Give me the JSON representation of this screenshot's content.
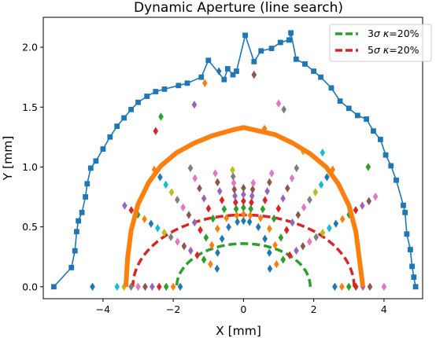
{
  "chart_data": {
    "type": "scatter",
    "title": "Dynamic Aperture (line search)",
    "xlabel": "X [mm]",
    "ylabel": "Y [mm]",
    "xlim": [
      -5.7,
      5.1
    ],
    "ylim": [
      -0.1,
      2.25
    ],
    "xticks": [
      -4,
      -2,
      0,
      2,
      4
    ],
    "yticks": [
      0.0,
      0.5,
      1.0,
      1.5,
      2.0
    ],
    "xtick_labels": [
      "−4",
      "−2",
      "0",
      "2",
      "4"
    ],
    "ytick_labels": [
      "0.0",
      "0.5",
      "1.0",
      "1.5",
      "2.0"
    ],
    "grid": false,
    "legend_position": "top-right",
    "legend": [
      {
        "label_prefix": "3",
        "sigma": "σ",
        "kappa": "κ",
        "label_suffix": "=20%",
        "color": "#2ca02c"
      },
      {
        "label_prefix": "5",
        "sigma": "σ",
        "kappa": "κ",
        "label_suffix": "=20%",
        "color": "#d62728"
      }
    ],
    "aperture_line": {
      "color": "#1f77b4",
      "x": [
        -5.4,
        -4.9,
        -4.8,
        -4.75,
        -4.7,
        -4.6,
        -4.5,
        -4.45,
        -4.35,
        -4.2,
        -4.0,
        -3.8,
        -3.6,
        -3.4,
        -3.2,
        -3.0,
        -2.75,
        -2.5,
        -2.25,
        -1.85,
        -1.6,
        -1.2,
        -1.0,
        -0.55,
        -0.45,
        -0.3,
        -0.2,
        0.05,
        0.3,
        0.5,
        0.8,
        1.05,
        1.3,
        1.35,
        1.5,
        1.75,
        2.0,
        2.2,
        2.5,
        2.75,
        3.0,
        3.25,
        3.5,
        3.7,
        3.9,
        4.05,
        4.2,
        4.35,
        4.55,
        4.6,
        4.65,
        4.75,
        4.8,
        4.85,
        4.9
      ],
      "y": [
        0.0,
        0.16,
        0.3,
        0.46,
        0.55,
        0.62,
        0.75,
        0.86,
        0.99,
        1.05,
        1.15,
        1.25,
        1.34,
        1.41,
        1.48,
        1.54,
        1.59,
        1.63,
        1.65,
        1.68,
        1.7,
        1.75,
        1.89,
        1.73,
        1.82,
        1.77,
        1.8,
        2.1,
        1.88,
        1.97,
        1.99,
        2.04,
        2.06,
        2.12,
        1.9,
        1.86,
        1.8,
        1.75,
        1.66,
        1.55,
        1.49,
        1.43,
        1.4,
        1.3,
        1.23,
        1.1,
        1.01,
        0.89,
        0.68,
        0.62,
        0.44,
        0.31,
        0.17,
        0.08,
        0.0
      ]
    },
    "fit_line": {
      "color": "#ff7f0e",
      "x": [
        -3.35,
        -3.3,
        -3.2,
        -3.0,
        -2.7,
        -2.35,
        -1.9,
        -1.4,
        -0.9,
        -0.3,
        0.0,
        0.3,
        0.9,
        1.4,
        1.9,
        2.35,
        2.7,
        3.0,
        3.2,
        3.3,
        3.4
      ],
      "y": [
        0.0,
        0.24,
        0.47,
        0.69,
        0.87,
        1.01,
        1.12,
        1.2,
        1.26,
        1.31,
        1.33,
        1.31,
        1.27,
        1.2,
        1.11,
        1.0,
        0.86,
        0.68,
        0.46,
        0.23,
        0.0
      ]
    },
    "ellipses": [
      {
        "name": "3σ κ=20%",
        "color": "#2ca02c",
        "a": 1.9,
        "b": 0.36
      },
      {
        "name": "5σ κ=20%",
        "color": "#d62728",
        "a": 3.15,
        "b": 0.6
      }
    ],
    "diamond_colors": [
      "#1f77b4",
      "#ff7f0e",
      "#2ca02c",
      "#d62728",
      "#9467bd",
      "#8c564b",
      "#e377c2",
      "#7f7f7f",
      "#bcbd22",
      "#17becf"
    ],
    "diamond_rays": [
      {
        "angle_deg": 180,
        "radii": [
          1.8,
          2.0,
          2.2,
          2.4,
          2.6,
          2.8,
          3.0,
          3.2,
          3.4,
          3.6,
          4.3
        ]
      },
      {
        "angle_deg": 160,
        "radii": [
          0.8,
          1.0,
          1.2,
          1.4,
          1.6,
          1.8,
          2.0,
          2.2,
          2.4,
          2.6,
          2.8,
          3.0,
          3.2,
          3.4,
          3.6
        ]
      },
      {
        "angle_deg": 145,
        "radii": [
          0.9,
          1.1,
          1.3,
          1.5,
          1.7,
          1.9,
          2.1,
          2.3,
          2.5,
          2.7,
          2.9,
          3.1
        ]
      },
      {
        "angle_deg": 130,
        "radii": [
          0.95,
          1.15,
          1.35,
          1.55,
          1.75,
          1.95,
          2.15,
          2.35
        ]
      },
      {
        "angle_deg": 115,
        "radii": [
          1.0,
          1.15,
          1.3,
          1.45,
          1.6,
          1.75,
          1.9
        ]
      },
      {
        "angle_deg": 100,
        "radii": [
          1.0,
          1.1,
          1.2,
          1.3,
          1.4,
          1.5,
          1.6,
          1.7,
          1.8
        ]
      },
      {
        "angle_deg": 90,
        "radii": [
          1.0,
          1.1,
          1.2,
          1.3,
          1.4,
          1.5
        ]
      },
      {
        "angle_deg": 80,
        "radii": [
          1.0,
          1.1,
          1.2,
          1.3,
          1.4,
          1.5,
          1.6
        ]
      },
      {
        "angle_deg": 65,
        "radii": [
          1.0,
          1.15,
          1.3,
          1.45,
          1.6,
          1.75,
          1.9
        ]
      },
      {
        "angle_deg": 50,
        "radii": [
          0.95,
          1.15,
          1.35,
          1.55,
          1.75,
          1.95,
          2.15,
          2.35
        ]
      },
      {
        "angle_deg": 35,
        "radii": [
          0.9,
          1.1,
          1.3,
          1.5,
          1.7,
          1.9,
          2.1,
          2.3,
          2.5,
          2.7,
          2.9,
          3.1
        ]
      },
      {
        "angle_deg": 20,
        "radii": [
          0.8,
          1.0,
          1.2,
          1.4,
          1.6,
          1.8,
          2.0,
          2.2,
          2.4,
          2.6,
          2.8,
          3.0,
          3.2,
          3.4,
          3.6,
          3.8,
          4.0
        ]
      },
      {
        "angle_deg": 0,
        "radii": [
          2.6,
          2.8,
          3.0,
          3.2,
          3.4,
          3.6,
          4.0
        ]
      }
    ],
    "diamond_extra": {
      "x": [
        -1.1,
        -2.35,
        -2.5,
        -1.4,
        0.3,
        1.0,
        1.15,
        1.7,
        2.25,
        -0.7,
        0.6,
        3.55
      ],
      "y": [
        1.7,
        1.42,
        1.3,
        1.52,
        1.77,
        1.53,
        1.48,
        1.13,
        1.12,
        1.8,
        1.32,
        1.0
      ]
    }
  }
}
